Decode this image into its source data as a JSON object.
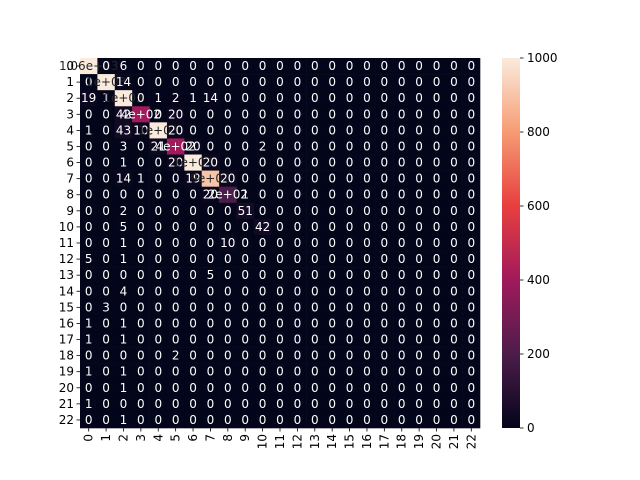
{
  "chart_data": {
    "type": "heatmap",
    "title": "",
    "xlabel": "",
    "ylabel": "",
    "x_tick_labels": [
      "0",
      "1",
      "2",
      "3",
      "4",
      "5",
      "6",
      "7",
      "8",
      "9",
      "10",
      "11",
      "12",
      "13",
      "14",
      "15",
      "16",
      "17",
      "18",
      "19",
      "20",
      "21",
      "22"
    ],
    "y_tick_labels": [
      "0",
      "1",
      "2",
      "3",
      "4",
      "5",
      "6",
      "7",
      "8",
      "9",
      "10",
      "11",
      "12",
      "13",
      "14",
      "15",
      "16",
      "17",
      "18",
      "19",
      "20",
      "21",
      "22"
    ],
    "values": [
      [
        1060,
        0,
        6,
        0,
        0,
        0,
        0,
        0,
        0,
        0,
        0,
        0,
        0,
        0,
        0,
        0,
        0,
        0,
        0,
        0,
        0,
        0,
        0
      ],
      [
        0,
        1000,
        14,
        0,
        0,
        0,
        0,
        0,
        0,
        0,
        0,
        0,
        0,
        0,
        0,
        0,
        0,
        0,
        0,
        0,
        0,
        0,
        0
      ],
      [
        19,
        1,
        1000,
        0,
        1,
        2,
        1,
        14,
        0,
        0,
        0,
        0,
        0,
        0,
        0,
        0,
        0,
        0,
        0,
        0,
        0,
        0,
        0
      ],
      [
        0,
        0,
        42,
        400,
        0,
        20,
        0,
        0,
        0,
        0,
        0,
        0,
        0,
        0,
        0,
        0,
        0,
        0,
        0,
        0,
        0,
        0,
        0
      ],
      [
        1,
        0,
        43,
        10,
        1000,
        20,
        0,
        0,
        0,
        0,
        0,
        0,
        0,
        0,
        0,
        0,
        0,
        0,
        0,
        0,
        0,
        0,
        0
      ],
      [
        0,
        0,
        3,
        0,
        21,
        400,
        20,
        0,
        0,
        0,
        2,
        0,
        0,
        0,
        0,
        0,
        0,
        0,
        0,
        0,
        0,
        0,
        0
      ],
      [
        0,
        0,
        1,
        0,
        0,
        20,
        1000,
        20,
        0,
        0,
        0,
        0,
        0,
        0,
        0,
        0,
        0,
        0,
        0,
        0,
        0,
        0,
        0
      ],
      [
        0,
        0,
        14,
        1,
        0,
        0,
        19,
        900,
        20,
        0,
        0,
        0,
        0,
        0,
        0,
        0,
        0,
        0,
        0,
        0,
        0,
        0,
        0
      ],
      [
        0,
        0,
        0,
        0,
        0,
        0,
        0,
        20,
        200,
        1,
        0,
        0,
        0,
        0,
        0,
        0,
        0,
        0,
        0,
        0,
        0,
        0,
        0
      ],
      [
        0,
        0,
        2,
        0,
        0,
        0,
        0,
        0,
        0,
        51,
        0,
        0,
        0,
        0,
        0,
        0,
        0,
        0,
        0,
        0,
        0,
        0,
        0
      ],
      [
        0,
        0,
        5,
        0,
        0,
        0,
        0,
        0,
        0,
        0,
        42,
        0,
        0,
        0,
        0,
        0,
        0,
        0,
        0,
        0,
        0,
        0,
        0
      ],
      [
        0,
        0,
        1,
        0,
        0,
        0,
        0,
        0,
        10,
        0,
        0,
        0,
        0,
        0,
        0,
        0,
        0,
        0,
        0,
        0,
        0,
        0,
        0
      ],
      [
        5,
        0,
        1,
        0,
        0,
        0,
        0,
        0,
        0,
        0,
        0,
        0,
        0,
        0,
        0,
        0,
        0,
        0,
        0,
        0,
        0,
        0,
        0
      ],
      [
        0,
        0,
        0,
        0,
        0,
        0,
        0,
        5,
        0,
        0,
        0,
        0,
        0,
        0,
        0,
        0,
        0,
        0,
        0,
        0,
        0,
        0,
        0
      ],
      [
        0,
        0,
        4,
        0,
        0,
        0,
        0,
        0,
        0,
        0,
        0,
        0,
        0,
        0,
        0,
        0,
        0,
        0,
        0,
        0,
        0,
        0,
        0
      ],
      [
        0,
        3,
        0,
        0,
        0,
        0,
        0,
        0,
        0,
        0,
        0,
        0,
        0,
        0,
        0,
        0,
        0,
        0,
        0,
        0,
        0,
        0,
        0
      ],
      [
        1,
        0,
        1,
        0,
        0,
        0,
        0,
        0,
        0,
        0,
        0,
        0,
        0,
        0,
        0,
        0,
        0,
        0,
        0,
        0,
        0,
        0,
        0
      ],
      [
        1,
        0,
        1,
        0,
        0,
        0,
        0,
        0,
        0,
        0,
        0,
        0,
        0,
        0,
        0,
        0,
        0,
        0,
        0,
        0,
        0,
        0,
        0
      ],
      [
        0,
        0,
        0,
        0,
        0,
        2,
        0,
        0,
        0,
        0,
        0,
        0,
        0,
        0,
        0,
        0,
        0,
        0,
        0,
        0,
        0,
        0,
        0
      ],
      [
        1,
        0,
        1,
        0,
        0,
        0,
        0,
        0,
        0,
        0,
        0,
        0,
        0,
        0,
        0,
        0,
        0,
        0,
        0,
        0,
        0,
        0,
        0
      ],
      [
        0,
        0,
        1,
        0,
        0,
        0,
        0,
        0,
        0,
        0,
        0,
        0,
        0,
        0,
        0,
        0,
        0,
        0,
        0,
        0,
        0,
        0,
        0
      ],
      [
        1,
        0,
        0,
        0,
        0,
        0,
        0,
        0,
        0,
        0,
        0,
        0,
        0,
        0,
        0,
        0,
        0,
        0,
        0,
        0,
        0,
        0,
        0
      ],
      [
        0,
        0,
        1,
        0,
        0,
        0,
        0,
        0,
        0,
        0,
        0,
        0,
        0,
        0,
        0,
        0,
        0,
        0,
        0,
        0,
        0,
        0,
        0
      ]
    ],
    "cell_labels": {
      "0,0": "1.06e+03",
      "1,1": "1e+03",
      "2,2": "1e+03",
      "3,3": "4e+02",
      "4,4": "1e+03",
      "5,5": "4e+02",
      "6,6": "1e+03",
      "7,7": "9e+02",
      "8,8": "2e+02"
    },
    "colorbar": {
      "range": [
        0,
        1000
      ],
      "tick_labels": [
        "0",
        "200",
        "400",
        "600",
        "800",
        "1000"
      ],
      "colormap": "rocket",
      "colors": [
        "#03051a",
        "#4c1d4b",
        "#a11a5b",
        "#e83f3f",
        "#f69c73",
        "#faebdd"
      ]
    },
    "grid": false,
    "legend": "colorbar-right"
  }
}
